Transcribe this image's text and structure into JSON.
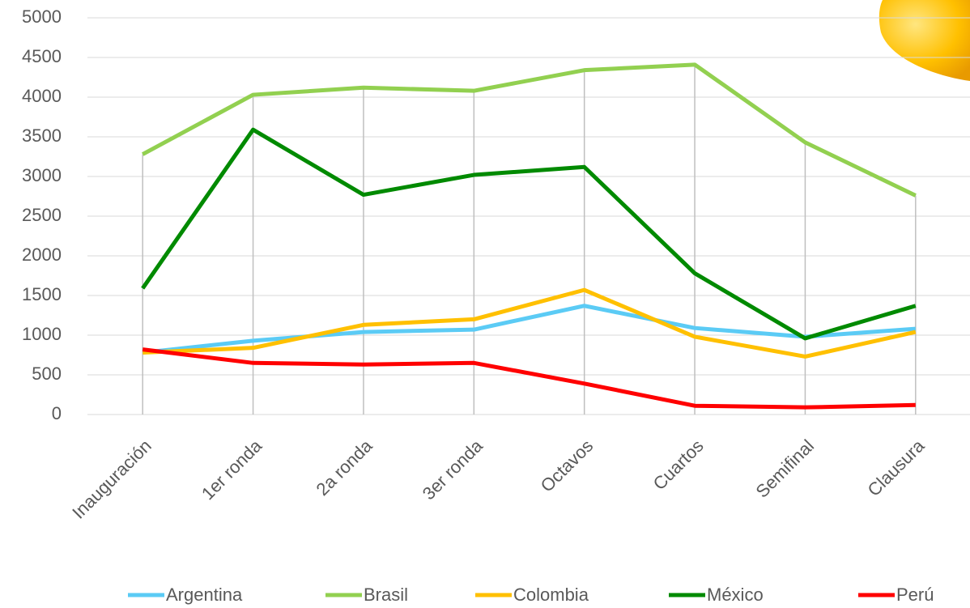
{
  "chart_data": {
    "type": "line",
    "categories": [
      "Inauguración",
      "1er ronda",
      "2a ronda",
      "3er ronda",
      "Octavos",
      "Cuartos",
      "Semifinal",
      "Clausura"
    ],
    "series": [
      {
        "name": "Argentina",
        "color": "#5bcbf5",
        "values": [
          780,
          930,
          1040,
          1070,
          1370,
          1090,
          980,
          1080
        ]
      },
      {
        "name": "Brasil",
        "color": "#92d050",
        "values": [
          3280,
          4030,
          4120,
          4080,
          4340,
          4410,
          3430,
          2760
        ]
      },
      {
        "name": "Colombia",
        "color": "#ffc000",
        "values": [
          780,
          840,
          1130,
          1200,
          1570,
          980,
          730,
          1040
        ]
      },
      {
        "name": "México",
        "color": "#008a00",
        "values": [
          1590,
          3590,
          2770,
          3020,
          3120,
          1780,
          960,
          1370
        ]
      },
      {
        "name": "Perú",
        "color": "#ff0000",
        "values": [
          820,
          650,
          630,
          650,
          390,
          110,
          90,
          120
        ]
      }
    ],
    "ylim": [
      0,
      5000
    ],
    "yticks": [
      0,
      500,
      1000,
      1500,
      2000,
      2500,
      3000,
      3500,
      4000,
      4500,
      5000
    ],
    "grid": true,
    "drop_lines": true,
    "legend": "bottom"
  }
}
